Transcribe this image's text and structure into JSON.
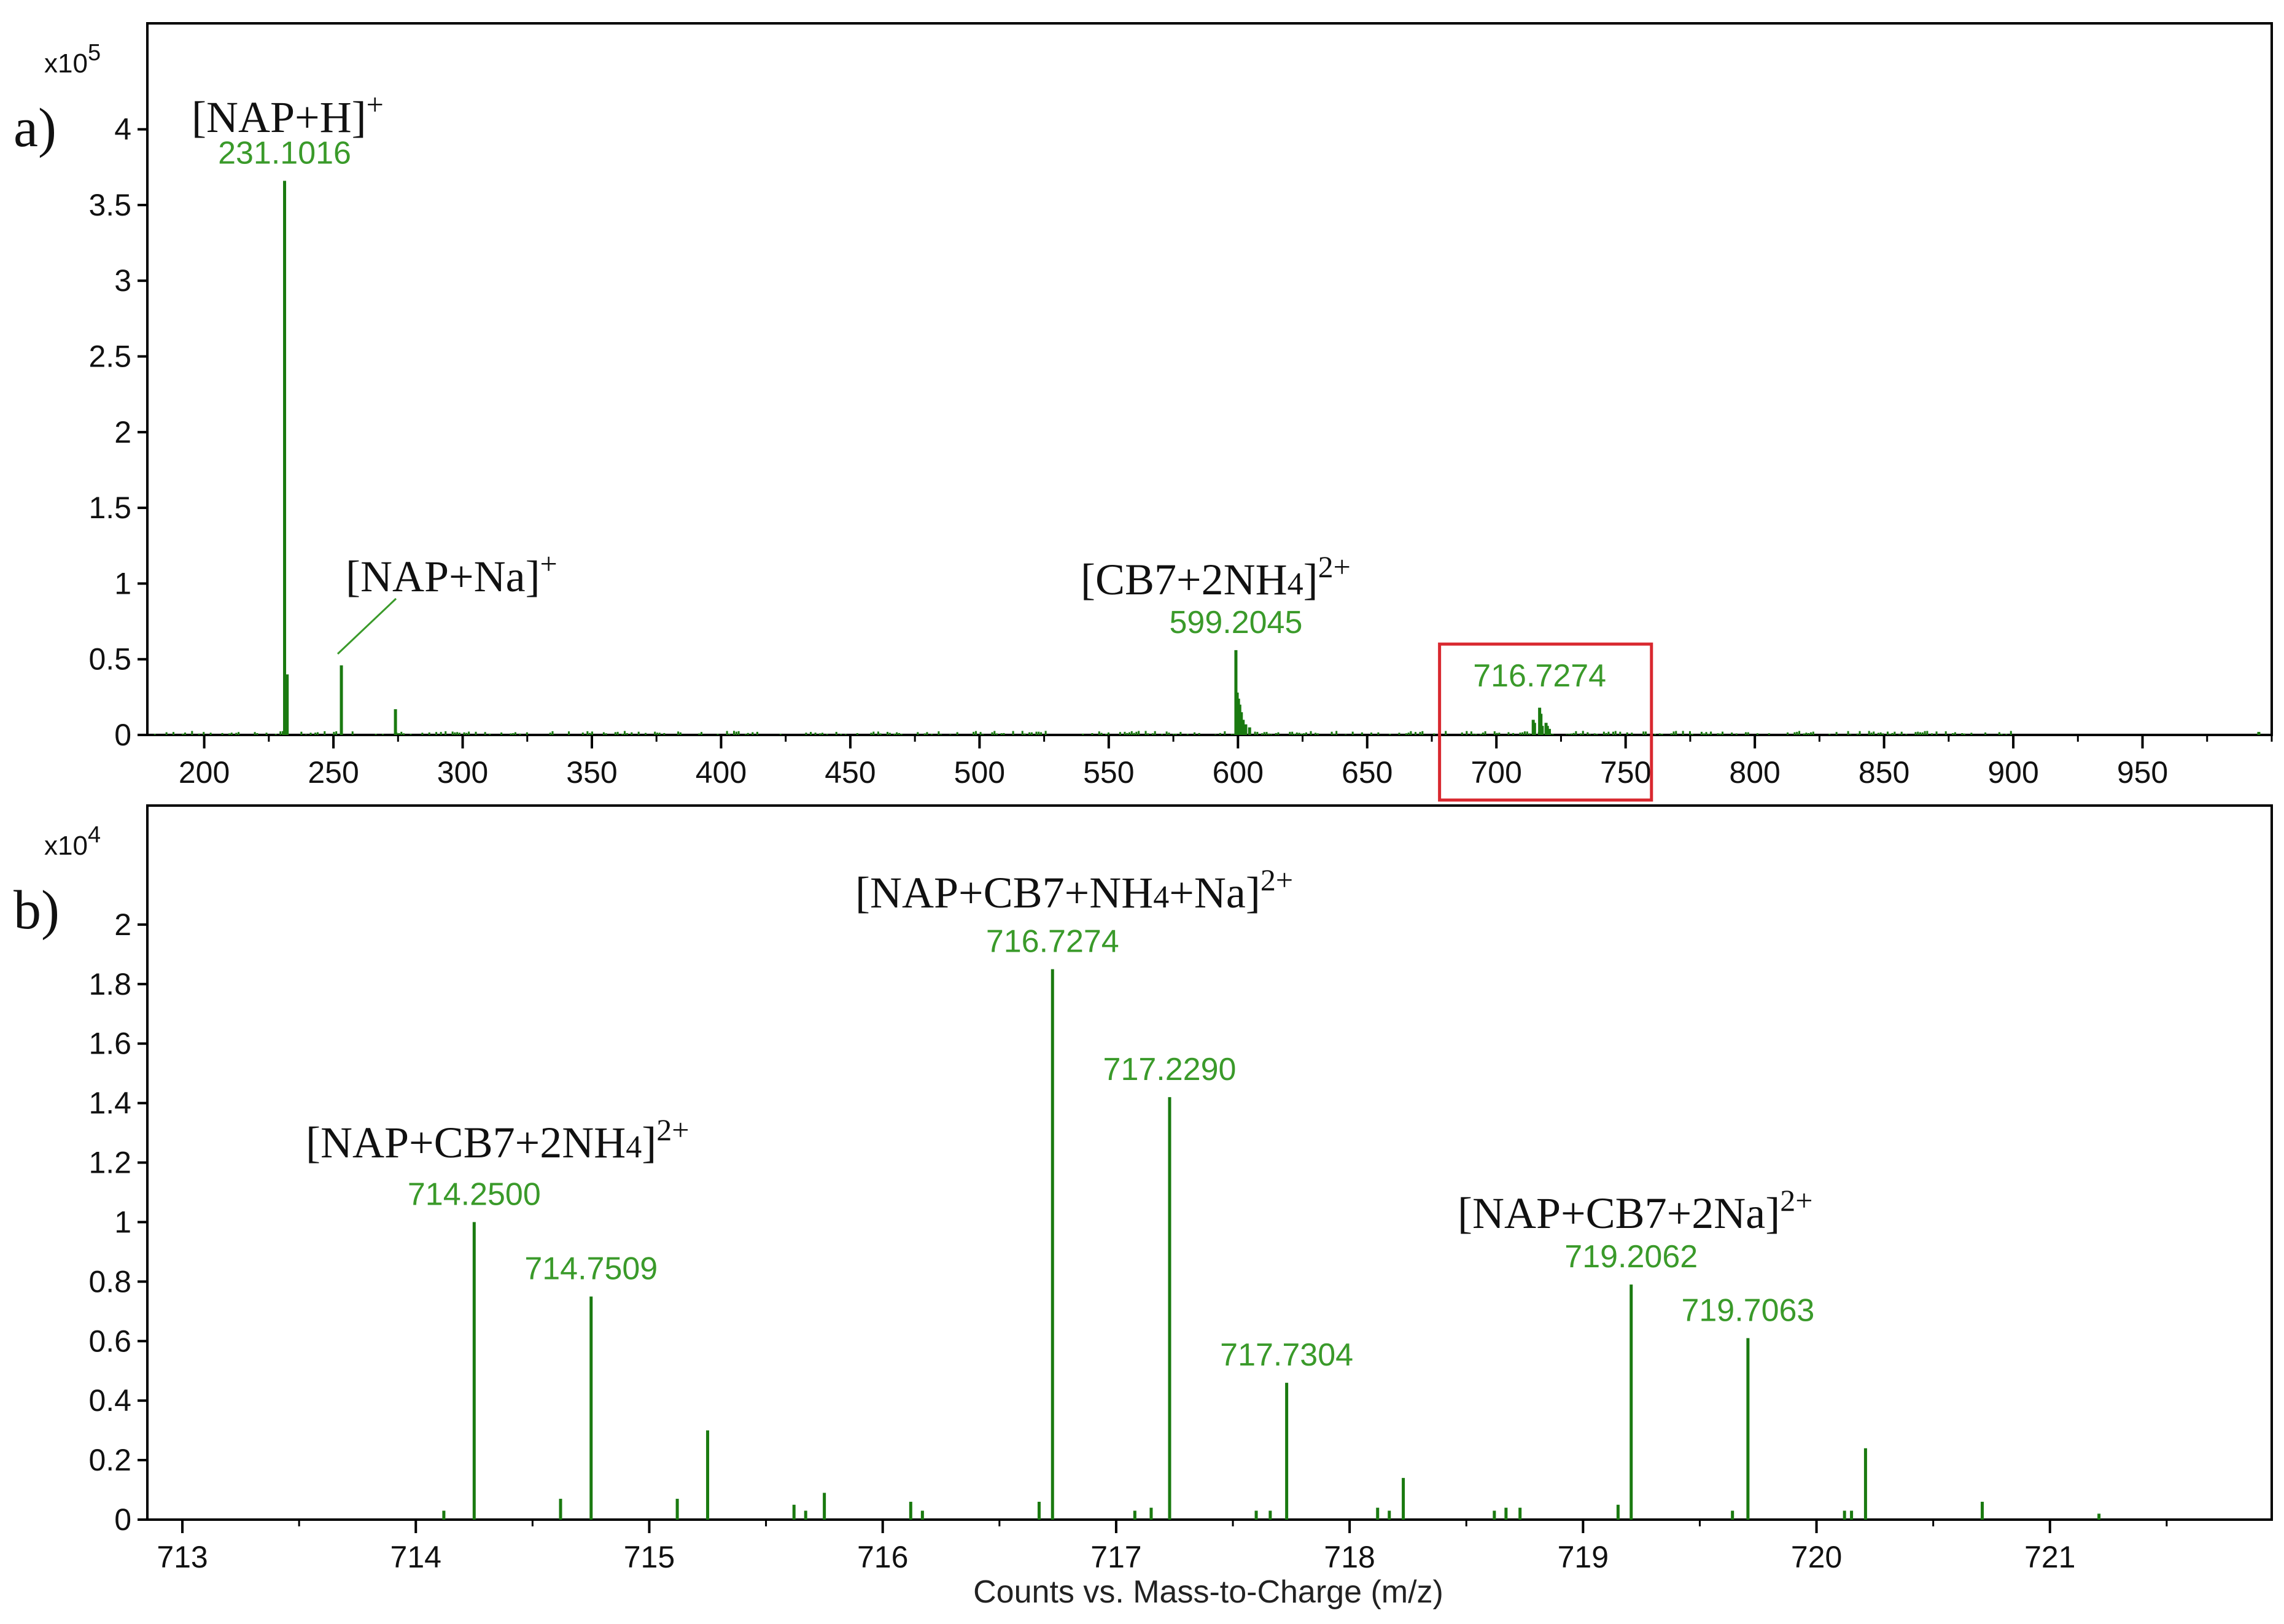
{
  "colors": {
    "spectrum": "#1a7a10",
    "label": "#3a9a2a",
    "axis": "#000000",
    "highlight_box": "#d9282f"
  },
  "xlabel": "Counts vs. Mass-to-Charge (m/z)",
  "chart_data": [
    {
      "type": "bar",
      "panel_label": "a)",
      "y_multiplier": "x10",
      "y_exponent": "5",
      "xlim": [
        178,
        1000
      ],
      "ylim": [
        0,
        4.7
      ],
      "xticks": [
        200,
        250,
        300,
        350,
        400,
        450,
        500,
        550,
        600,
        650,
        700,
        750,
        800,
        850,
        900,
        950
      ],
      "xtick_labels": [
        "200",
        "250",
        "300",
        "350",
        "400",
        "450",
        "500",
        "550",
        "600",
        "650",
        "700",
        "750",
        "800",
        "850",
        "900",
        "950"
      ],
      "yticks": [
        0,
        0.5,
        1,
        1.5,
        2,
        2.5,
        3,
        3.5,
        4
      ],
      "ytick_labels": [
        "0",
        "0.5",
        "1",
        "1.5",
        "2",
        "2.5",
        "3",
        "3.5",
        "4"
      ],
      "peaks": [
        {
          "x": 231.1016,
          "y": 3.66
        },
        {
          "x": 232.1,
          "y": 0.4
        },
        {
          "x": 253.08,
          "y": 0.46
        },
        {
          "x": 274.0,
          "y": 0.17
        },
        {
          "x": 599.2045,
          "y": 0.56
        },
        {
          "x": 599.7,
          "y": 0.28
        },
        {
          "x": 600.2,
          "y": 0.24
        },
        {
          "x": 600.7,
          "y": 0.2
        },
        {
          "x": 601.3,
          "y": 0.15
        },
        {
          "x": 602.0,
          "y": 0.1
        },
        {
          "x": 603.0,
          "y": 0.07
        },
        {
          "x": 604.5,
          "y": 0.05
        },
        {
          "x": 714.25,
          "y": 0.1
        },
        {
          "x": 714.75,
          "y": 0.08
        },
        {
          "x": 716.7274,
          "y": 0.18
        },
        {
          "x": 717.23,
          "y": 0.14
        },
        {
          "x": 717.73,
          "y": 0.06
        },
        {
          "x": 719.21,
          "y": 0.08
        },
        {
          "x": 719.71,
          "y": 0.06
        },
        {
          "x": 720.5,
          "y": 0.04
        },
        {
          "x": 995.0,
          "y": 0.02
        }
      ],
      "peak_labels": [
        {
          "x": 231.1016,
          "text": "231.1016"
        },
        {
          "x": 599.2045,
          "text": "599.2045"
        },
        {
          "x": 716.7274,
          "text": "716.7274"
        }
      ],
      "annotations": [
        {
          "text": "[NAP+H]",
          "sup": "+"
        },
        {
          "text": "[NAP+Na]",
          "sup": "+"
        },
        {
          "text": "[CB7+2NH4]",
          "sup": "2+"
        }
      ],
      "highlight": {
        "xmin": 678,
        "xmax": 760,
        "ymin": -0.43,
        "ymax": 0.6
      }
    },
    {
      "type": "bar",
      "panel_label": "b)",
      "y_multiplier": "x10",
      "y_exponent": "4",
      "xlim": [
        712.85,
        721.95
      ],
      "ylim": [
        0,
        2.4
      ],
      "xticks": [
        713,
        714,
        715,
        716,
        717,
        718,
        719,
        720,
        721
      ],
      "xtick_labels": [
        "713",
        "714",
        "715",
        "716",
        "717",
        "718",
        "719",
        "720",
        "721"
      ],
      "yticks": [
        0,
        0.2,
        0.4,
        0.6,
        0.8,
        1,
        1.2,
        1.4,
        1.6,
        1.8,
        2
      ],
      "ytick_labels": [
        "0",
        "0.2",
        "0.4",
        "0.6",
        "0.8",
        "1",
        "1.2",
        "1.4",
        "1.6",
        "1.8",
        "2"
      ],
      "peaks": [
        {
          "x": 714.12,
          "y": 0.03
        },
        {
          "x": 714.25,
          "y": 1.0
        },
        {
          "x": 714.62,
          "y": 0.07
        },
        {
          "x": 714.7509,
          "y": 0.75
        },
        {
          "x": 715.12,
          "y": 0.07
        },
        {
          "x": 715.25,
          "y": 0.3
        },
        {
          "x": 715.62,
          "y": 0.05
        },
        {
          "x": 715.67,
          "y": 0.03
        },
        {
          "x": 715.75,
          "y": 0.09
        },
        {
          "x": 716.12,
          "y": 0.06
        },
        {
          "x": 716.17,
          "y": 0.03
        },
        {
          "x": 716.67,
          "y": 0.06
        },
        {
          "x": 716.7274,
          "y": 1.85
        },
        {
          "x": 717.08,
          "y": 0.03
        },
        {
          "x": 717.15,
          "y": 0.04
        },
        {
          "x": 717.229,
          "y": 1.42
        },
        {
          "x": 717.6,
          "y": 0.03
        },
        {
          "x": 717.66,
          "y": 0.03
        },
        {
          "x": 717.7304,
          "y": 0.46
        },
        {
          "x": 718.12,
          "y": 0.04
        },
        {
          "x": 718.17,
          "y": 0.03
        },
        {
          "x": 718.23,
          "y": 0.14
        },
        {
          "x": 718.62,
          "y": 0.03
        },
        {
          "x": 718.67,
          "y": 0.04
        },
        {
          "x": 718.73,
          "y": 0.04
        },
        {
          "x": 719.15,
          "y": 0.05
        },
        {
          "x": 719.2062,
          "y": 0.79
        },
        {
          "x": 719.64,
          "y": 0.03
        },
        {
          "x": 719.7063,
          "y": 0.61
        },
        {
          "x": 720.12,
          "y": 0.03
        },
        {
          "x": 720.15,
          "y": 0.03
        },
        {
          "x": 720.21,
          "y": 0.24
        },
        {
          "x": 720.71,
          "y": 0.06
        },
        {
          "x": 721.21,
          "y": 0.02
        }
      ],
      "peak_labels": [
        {
          "x": 714.25,
          "text": "714.2500"
        },
        {
          "x": 714.7509,
          "text": "714.7509"
        },
        {
          "x": 716.7274,
          "text": "716.7274"
        },
        {
          "x": 717.229,
          "text": "717.2290"
        },
        {
          "x": 717.7304,
          "text": "717.7304"
        },
        {
          "x": 719.2062,
          "text": "719.2062"
        },
        {
          "x": 719.7063,
          "text": "719.7063"
        }
      ],
      "annotations": [
        {
          "text": "[NAP+CB7+NH4+Na]",
          "sup": "2+"
        },
        {
          "text": "[NAP+CB7+2NH4]",
          "sup": "2+"
        },
        {
          "text": "[NAP+CB7+2Na]",
          "sup": "2+"
        }
      ]
    }
  ]
}
